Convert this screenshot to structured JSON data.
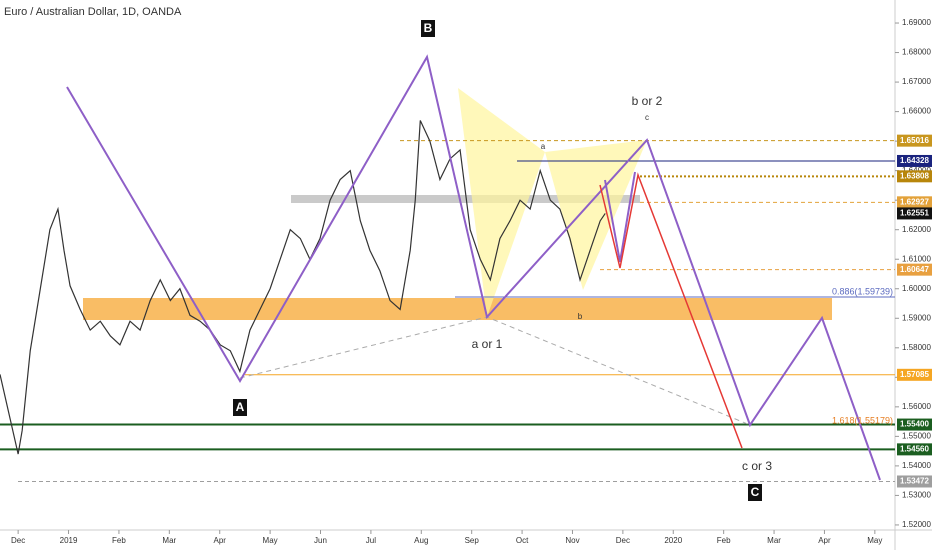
{
  "chart_data": {
    "type": "line",
    "title": "Euro / Australian Dollar, 1D, OANDA",
    "xlim": [
      -0.36,
      17.4
    ],
    "ylim": [
      1.5149,
      1.6978
    ],
    "xticks": [
      {
        "value": 0,
        "label": "Dec"
      },
      {
        "value": 1,
        "label": "2019"
      },
      {
        "value": 2,
        "label": "Feb"
      },
      {
        "value": 3,
        "label": "Mar"
      },
      {
        "value": 4,
        "label": "Apr"
      },
      {
        "value": 5,
        "label": "May"
      },
      {
        "value": 6,
        "label": "Jun"
      },
      {
        "value": 7,
        "label": "Jul"
      },
      {
        "value": 8,
        "label": "Aug"
      },
      {
        "value": 9,
        "label": "Sep"
      },
      {
        "value": 10,
        "label": "Oct"
      },
      {
        "value": 11,
        "label": "Nov"
      },
      {
        "value": 12,
        "label": "Dec"
      },
      {
        "value": 13,
        "label": "2020"
      },
      {
        "value": 14,
        "label": "Feb"
      },
      {
        "value": 15,
        "label": "Mar"
      },
      {
        "value": 16,
        "label": "Apr"
      },
      {
        "value": 17,
        "label": "May"
      }
    ],
    "yticks": [
      {
        "value": 1.52,
        "label": "1.52000"
      },
      {
        "value": 1.53,
        "label": "1.53000"
      },
      {
        "value": 1.54,
        "label": "1.54000"
      },
      {
        "value": 1.55,
        "label": "1.55000"
      },
      {
        "value": 1.56,
        "label": "1.56000"
      },
      {
        "value": 1.57,
        "label": "1.57000"
      },
      {
        "value": 1.58,
        "label": "1.58000"
      },
      {
        "value": 1.59,
        "label": "1.59000"
      },
      {
        "value": 1.6,
        "label": "1.60000"
      },
      {
        "value": 1.61,
        "label": "1.61000"
      },
      {
        "value": 1.62,
        "label": "1.62000"
      },
      {
        "value": 1.63,
        "label": "1.63000"
      },
      {
        "value": 1.64,
        "label": "1.64000"
      },
      {
        "value": 1.65,
        "label": "1.65000"
      },
      {
        "value": 1.66,
        "label": "1.66000"
      },
      {
        "value": 1.67,
        "label": "1.67000"
      },
      {
        "value": 1.68,
        "label": "1.68000"
      },
      {
        "value": 1.69,
        "label": "1.69000"
      }
    ],
    "series": [
      {
        "color": "#333333",
        "x": [
          -0.36,
          -0.16,
          0,
          0.08,
          0.24,
          0.44,
          0.63,
          0.79,
          0.91,
          1.03,
          1.23,
          1.43,
          1.63,
          1.83,
          2.02,
          2.22,
          2.42,
          2.62,
          2.82,
          3.02,
          3.21,
          3.41,
          3.61,
          3.81,
          4.01,
          4.21,
          4.4,
          4.6,
          4.8,
          5,
          5.2,
          5.4,
          5.6,
          5.79,
          5.99,
          6.19,
          6.39,
          6.59,
          6.79,
          6.98,
          7.18,
          7.38,
          7.58,
          7.78,
          7.88,
          7.98,
          8.17,
          8.37,
          8.57,
          8.77,
          8.97,
          9.17,
          9.37,
          9.56,
          9.76,
          9.96,
          10.16,
          10.36,
          10.56,
          10.75,
          10.95,
          11.15,
          11.35,
          11.55,
          11.65
        ],
        "values": [
          1.571,
          1.556,
          1.544,
          1.552,
          1.579,
          1.6,
          1.62,
          1.627,
          1.613,
          1.601,
          1.593,
          1.586,
          1.589,
          1.584,
          1.581,
          1.589,
          1.586,
          1.596,
          1.603,
          1.596,
          1.6,
          1.591,
          1.589,
          1.586,
          1.581,
          1.579,
          1.572,
          1.586,
          1.593,
          1.6,
          1.61,
          1.62,
          1.617,
          1.61,
          1.617,
          1.63,
          1.637,
          1.64,
          1.623,
          1.613,
          1.606,
          1.596,
          1.593,
          1.613,
          1.63,
          1.657,
          1.65,
          1.637,
          1.644,
          1.647,
          1.62,
          1.61,
          1.603,
          1.617,
          1.623,
          1.63,
          1.627,
          1.64,
          1.63,
          1.627,
          1.617,
          1.603,
          1.613,
          1.623,
          1.62551
        ]
      }
    ],
    "price_levels": [
      {
        "value": 1.65016,
        "color": "#c8961e"
      },
      {
        "value": 1.64328,
        "color": "#1a237e"
      },
      {
        "value": 1.63808,
        "color": "#b8860b"
      },
      {
        "value": 1.62927,
        "color": "#e3a23a"
      },
      {
        "value": 1.62551,
        "color": "#111111"
      },
      {
        "value": 1.60647,
        "color": "#e8a040"
      },
      {
        "value": 1.57085,
        "color": "#f5a623"
      },
      {
        "value": 1.554,
        "label": "1.55400",
        "color": "#1b5e20"
      },
      {
        "value": 1.5456,
        "label": "1.54560",
        "color": "#1b5e20"
      },
      {
        "value": 1.53472,
        "color": "#9e9e9e"
      }
    ],
    "annotations": {
      "A": "A",
      "B": "B",
      "C": "C",
      "a_or_1": "a or 1",
      "b_or_2": "b or 2",
      "c_or_3": "c or 3",
      "a": "a",
      "b": "b",
      "c": "c",
      "fib_886": "0.886(1.59739)",
      "fib_1618": "1.618(1.55179)"
    }
  }
}
